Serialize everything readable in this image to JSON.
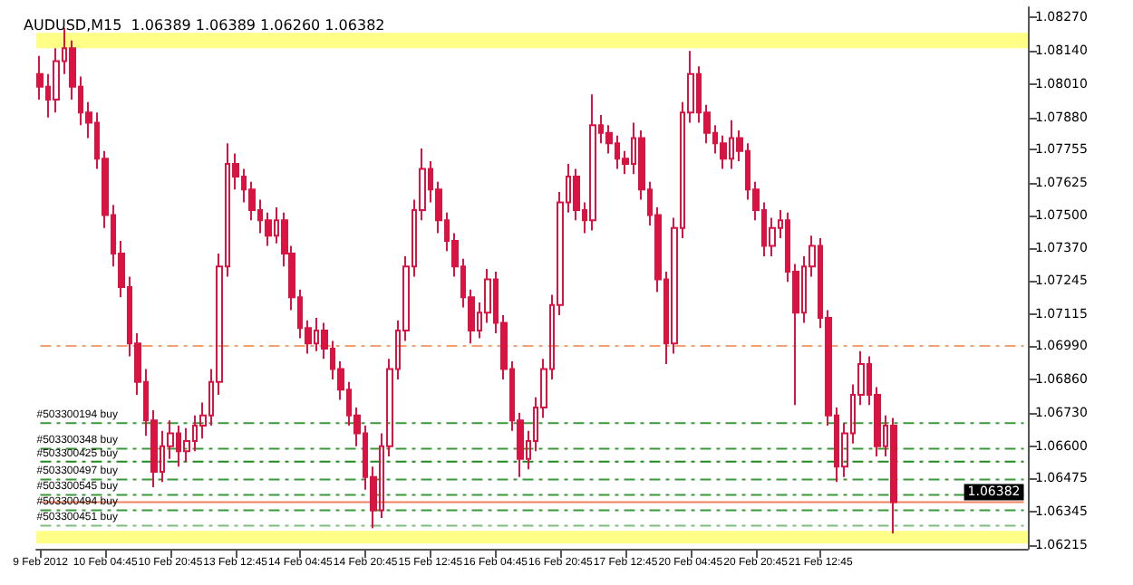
{
  "chart_data": {
    "type": "candlestick",
    "title": "AUDUSD,M15  1.06389 1.06389 1.06260 1.06382",
    "color": "#d81442",
    "categories": [
      "9 Feb 2012",
      null,
      null,
      null,
      null,
      null,
      null,
      null,
      "10 Feb 04:45",
      null,
      null,
      null,
      null,
      null,
      null,
      null,
      "10 Feb 20:45",
      null,
      null,
      null,
      null,
      null,
      null,
      null,
      "13 Feb 12:45",
      null,
      null,
      null,
      null,
      null,
      null,
      null,
      "14 Feb 04:45",
      null,
      null,
      null,
      null,
      null,
      null,
      null,
      "14 Feb 20:45",
      null,
      null,
      null,
      null,
      null,
      null,
      null,
      "15 Feb 12:45",
      null,
      null,
      null,
      null,
      null,
      null,
      null,
      "16 Feb 04:45",
      null,
      null,
      null,
      null,
      null,
      null,
      null,
      "16 Feb 20:45",
      null,
      null,
      null,
      null,
      null,
      null,
      null,
      "17 Feb 12:45",
      null,
      null,
      null,
      null,
      null,
      null,
      null,
      "20 Feb 04:45",
      null,
      null,
      null,
      null,
      null,
      null,
      null,
      "20 Feb 20:45",
      null,
      null,
      null,
      null,
      null,
      null,
      null,
      "21 Feb 12:45",
      null,
      null,
      null,
      null,
      null,
      null,
      null,
      null,
      null,
      null,
      null,
      null,
      null,
      null,
      null,
      null,
      null,
      null,
      null,
      null,
      null,
      null,
      null,
      null,
      null
    ],
    "ohlc": [
      [
        1.0805,
        1.0812,
        1.0795,
        1.08
      ],
      [
        1.08,
        1.0805,
        1.0788,
        1.0795
      ],
      [
        1.0795,
        1.0815,
        1.079,
        1.081
      ],
      [
        1.081,
        1.0823,
        1.0805,
        1.0815
      ],
      [
        1.0815,
        1.0818,
        1.0795,
        1.08
      ],
      [
        1.08,
        1.0804,
        1.0785,
        1.079
      ],
      [
        1.079,
        1.0794,
        1.078,
        1.0786
      ],
      [
        1.0786,
        1.079,
        1.0768,
        1.0772
      ],
      [
        1.0772,
        1.0775,
        1.0745,
        1.075
      ],
      [
        1.075,
        1.0754,
        1.073,
        1.0735
      ],
      [
        1.0735,
        1.074,
        1.0718,
        1.0722
      ],
      [
        1.0722,
        1.0726,
        1.0695,
        1.07
      ],
      [
        1.07,
        1.0704,
        1.068,
        1.0685
      ],
      [
        1.0685,
        1.069,
        1.0664,
        1.067
      ],
      [
        1.067,
        1.0674,
        1.0644,
        1.065
      ],
      [
        1.065,
        1.0666,
        1.0646,
        1.066
      ],
      [
        1.066,
        1.067,
        1.0655,
        1.0665
      ],
      [
        1.0665,
        1.0668,
        1.0652,
        1.0658
      ],
      [
        1.0658,
        1.0667,
        1.0654,
        1.0662
      ],
      [
        1.0662,
        1.0672,
        1.0658,
        1.0668
      ],
      [
        1.0668,
        1.0677,
        1.0663,
        1.0672
      ],
      [
        1.0672,
        1.069,
        1.0668,
        1.0685
      ],
      [
        1.0685,
        1.0735,
        1.068,
        1.073
      ],
      [
        1.073,
        1.0778,
        1.0726,
        1.077
      ],
      [
        1.077,
        1.0774,
        1.076,
        1.0765
      ],
      [
        1.0765,
        1.0768,
        1.0755,
        1.076
      ],
      [
        1.076,
        1.0763,
        1.0748,
        1.0752
      ],
      [
        1.0752,
        1.0756,
        1.0743,
        1.0748
      ],
      [
        1.0748,
        1.0751,
        1.0738,
        1.0742
      ],
      [
        1.0742,
        1.0753,
        1.0739,
        1.0748
      ],
      [
        1.0748,
        1.0751,
        1.073,
        1.0735
      ],
      [
        1.0735,
        1.0738,
        1.0713,
        1.0718
      ],
      [
        1.0718,
        1.0721,
        1.0702,
        1.0706
      ],
      [
        1.0706,
        1.0709,
        1.0696,
        1.07
      ],
      [
        1.07,
        1.071,
        1.0697,
        1.0705
      ],
      [
        1.0705,
        1.0708,
        1.0694,
        1.0698
      ],
      [
        1.0698,
        1.0701,
        1.0686,
        1.069
      ],
      [
        1.069,
        1.0693,
        1.0678,
        1.0682
      ],
      [
        1.0682,
        1.0685,
        1.0668,
        1.0672
      ],
      [
        1.0672,
        1.0675,
        1.066,
        1.0665
      ],
      [
        1.0665,
        1.0668,
        1.0643,
        1.0648
      ],
      [
        1.0648,
        1.0652,
        1.0628,
        1.0635
      ],
      [
        1.0635,
        1.0665,
        1.0632,
        1.066
      ],
      [
        1.066,
        1.0694,
        1.0656,
        1.069
      ],
      [
        1.069,
        1.0709,
        1.0686,
        1.0705
      ],
      [
        1.0705,
        1.0734,
        1.0701,
        1.073
      ],
      [
        1.073,
        1.0756,
        1.0726,
        1.0752
      ],
      [
        1.0752,
        1.0776,
        1.0748,
        1.0768
      ],
      [
        1.0768,
        1.0771,
        1.0755,
        1.076
      ],
      [
        1.076,
        1.0763,
        1.0743,
        1.0748
      ],
      [
        1.0748,
        1.0751,
        1.0736,
        1.074
      ],
      [
        1.074,
        1.0743,
        1.0726,
        1.073
      ],
      [
        1.073,
        1.0733,
        1.0714,
        1.0718
      ],
      [
        1.0718,
        1.0721,
        1.07,
        1.0705
      ],
      [
        1.0705,
        1.0716,
        1.0702,
        1.0712
      ],
      [
        1.0712,
        1.0729,
        1.0708,
        1.0725
      ],
      [
        1.0725,
        1.0728,
        1.0704,
        1.0708
      ],
      [
        1.0708,
        1.0711,
        1.0686,
        1.069
      ],
      [
        1.069,
        1.0693,
        1.0666,
        1.067
      ],
      [
        1.067,
        1.0673,
        1.0648,
        1.0655
      ],
      [
        1.0655,
        1.0666,
        1.0651,
        1.0662
      ],
      [
        1.0662,
        1.0679,
        1.0658,
        1.0675
      ],
      [
        1.0675,
        1.0694,
        1.0671,
        1.069
      ],
      [
        1.069,
        1.0719,
        1.0686,
        1.0715
      ],
      [
        1.0715,
        1.0759,
        1.0711,
        1.0755
      ],
      [
        1.0755,
        1.077,
        1.0751,
        1.0765
      ],
      [
        1.0765,
        1.0768,
        1.0748,
        1.0752
      ],
      [
        1.0752,
        1.0755,
        1.0743,
        1.0748
      ],
      [
        1.0748,
        1.0797,
        1.0744,
        1.0785
      ],
      [
        1.0785,
        1.0789,
        1.0778,
        1.0782
      ],
      [
        1.0782,
        1.0785,
        1.0774,
        1.0778
      ],
      [
        1.0778,
        1.0781,
        1.0768,
        1.0772
      ],
      [
        1.0772,
        1.0775,
        1.0766,
        1.077
      ],
      [
        1.077,
        1.0786,
        1.0766,
        1.078
      ],
      [
        1.078,
        1.0783,
        1.0756,
        1.076
      ],
      [
        1.076,
        1.0763,
        1.0746,
        1.075
      ],
      [
        1.075,
        1.0753,
        1.072,
        1.0725
      ],
      [
        1.0725,
        1.0728,
        1.0692,
        1.07
      ],
      [
        1.07,
        1.0749,
        1.0696,
        1.0745
      ],
      [
        1.0745,
        1.0794,
        1.0741,
        1.079
      ],
      [
        1.079,
        1.0814,
        1.0786,
        1.0805
      ],
      [
        1.0805,
        1.0808,
        1.0786,
        1.079
      ],
      [
        1.079,
        1.0793,
        1.0778,
        1.0782
      ],
      [
        1.0782,
        1.0785,
        1.0774,
        1.0778
      ],
      [
        1.0778,
        1.0781,
        1.0768,
        1.0772
      ],
      [
        1.0772,
        1.0787,
        1.0768,
        1.078
      ],
      [
        1.078,
        1.0783,
        1.0771,
        1.0775
      ],
      [
        1.0775,
        1.0778,
        1.0756,
        1.076
      ],
      [
        1.076,
        1.0763,
        1.0748,
        1.0752
      ],
      [
        1.0752,
        1.0755,
        1.0734,
        1.0738
      ],
      [
        1.0738,
        1.0749,
        1.0734,
        1.0745
      ],
      [
        1.0745,
        1.0752,
        1.0741,
        1.0748
      ],
      [
        1.0748,
        1.0751,
        1.0724,
        1.0728
      ],
      [
        1.0728,
        1.0731,
        1.0676,
        1.0712
      ],
      [
        1.0712,
        1.0734,
        1.0708,
        1.073
      ],
      [
        1.073,
        1.0742,
        1.0726,
        1.0738
      ],
      [
        1.0738,
        1.0741,
        1.0706,
        1.071
      ],
      [
        1.071,
        1.0713,
        1.0668,
        1.0672
      ],
      [
        1.0672,
        1.0675,
        1.0646,
        1.0652
      ],
      [
        1.0652,
        1.0669,
        1.0648,
        1.0665
      ],
      [
        1.0665,
        1.0684,
        1.0661,
        1.068
      ],
      [
        1.068,
        1.0697,
        1.0676,
        1.0692
      ],
      [
        1.0692,
        1.0695,
        1.0676,
        1.068
      ],
      [
        1.068,
        1.0683,
        1.0656,
        1.066
      ],
      [
        1.066,
        1.0672,
        1.0656,
        1.0668
      ],
      [
        1.0668,
        1.0671,
        1.0626,
        1.06382
      ],
      null,
      null,
      null,
      null,
      null,
      null,
      null,
      null,
      null,
      null,
      null,
      null,
      null,
      null,
      null,
      null
    ],
    "ylim": [
      1.062,
      1.0831
    ],
    "yticks": [
      {
        "value": 1.0827,
        "label": "1.08270"
      },
      {
        "value": 1.0814,
        "label": "1.08140"
      },
      {
        "value": 1.0801,
        "label": "1.08010"
      },
      {
        "value": 1.0788,
        "label": "1.07880"
      },
      {
        "value": 1.07755,
        "label": "1.07755"
      },
      {
        "value": 1.07625,
        "label": "1.07625"
      },
      {
        "value": 1.075,
        "label": "1.07500"
      },
      {
        "value": 1.0737,
        "label": "1.07370"
      },
      {
        "value": 1.07245,
        "label": "1.07245"
      },
      {
        "value": 1.07115,
        "label": "1.07115"
      },
      {
        "value": 1.0699,
        "label": "1.06990"
      },
      {
        "value": 1.0686,
        "label": "1.06860"
      },
      {
        "value": 1.0673,
        "label": "1.06730"
      },
      {
        "value": 1.066,
        "label": "1.06600"
      },
      {
        "value": 1.06475,
        "label": "1.06475"
      },
      {
        "value": 1.06345,
        "label": "1.06345"
      },
      {
        "value": 1.06215,
        "label": "1.06215"
      }
    ],
    "ref_lines": [
      {
        "axis": "y",
        "value": 1.0669,
        "label": "#503300194 buy",
        "color": "#3a9a3a",
        "line_style": "dashed"
      },
      {
        "axis": "y",
        "value": 1.0659,
        "label": "#503300348 buy",
        "color": "#3a9a3a",
        "line_style": "dashed"
      },
      {
        "axis": "y",
        "value": 1.0654,
        "label": "#503300425 buy",
        "color": "#1f8a1f",
        "line_style": "dashed"
      },
      {
        "axis": "y",
        "value": 1.0647,
        "label": "#503300497 buy",
        "color": "#3a9a3a",
        "line_style": "dashed"
      },
      {
        "axis": "y",
        "value": 1.0641,
        "label": "#503300545 buy",
        "color": "#3a9a3a",
        "line_style": "dashed"
      },
      {
        "axis": "y",
        "value": 1.0635,
        "label": "#503300494 buy",
        "color": "#3a9a3a",
        "line_style": "dashed"
      },
      {
        "axis": "y",
        "value": 1.0629,
        "label": "#503300451 buy",
        "color": "#7cbf7c",
        "line_style": "dashed"
      },
      {
        "axis": "y",
        "value": 1.0699,
        "label": null,
        "color": "#f4a070",
        "line_style": "dashed"
      },
      {
        "axis": "y",
        "value": 1.06382,
        "label": "1.06382",
        "color": "#f08060",
        "line_style": "solid"
      }
    ],
    "bands": [
      {
        "axis": "y",
        "from": 1.0815,
        "to": 1.0821,
        "color": "#ffff88"
      },
      {
        "axis": "y",
        "from": 1.0622,
        "to": 1.0627,
        "color": "#ffff88"
      }
    ]
  }
}
